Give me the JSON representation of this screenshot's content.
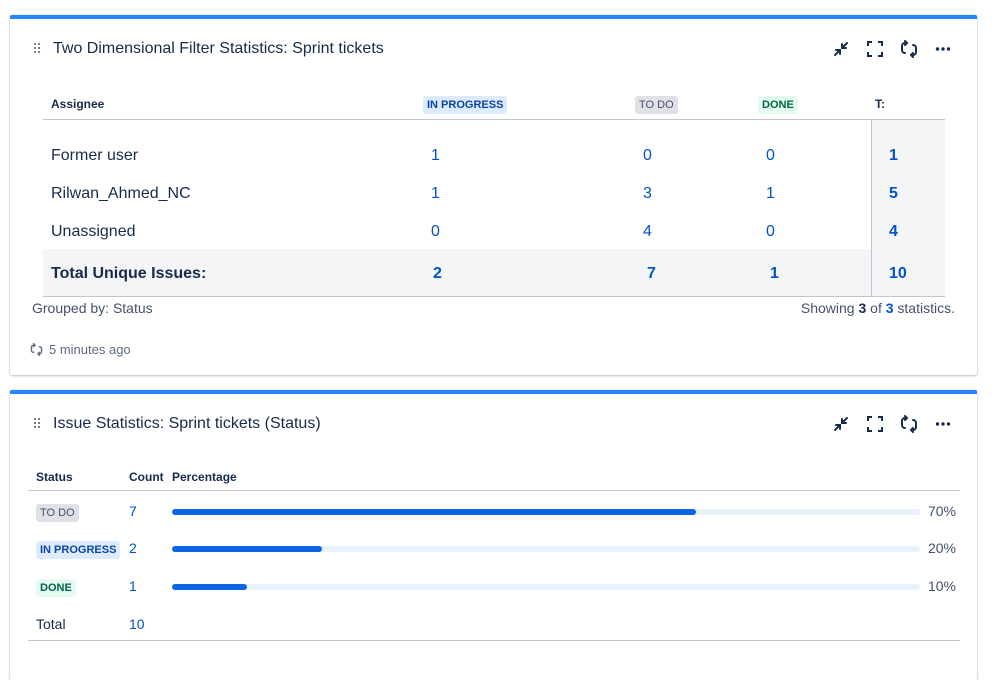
{
  "gadget1": {
    "title": "Two Dimensional Filter Statistics: Sprint tickets",
    "columns": {
      "assignee": "Assignee",
      "in_progress": "IN PROGRESS",
      "to_do": "TO DO",
      "done": "DONE",
      "total": "T:"
    },
    "rows": [
      {
        "name": "Former user",
        "in_progress": "1",
        "to_do": "0",
        "done": "0",
        "total": "1"
      },
      {
        "name": "Rilwan_Ahmed_NC",
        "in_progress": "1",
        "to_do": "3",
        "done": "1",
        "total": "5"
      },
      {
        "name": "Unassigned",
        "in_progress": "0",
        "to_do": "4",
        "done": "0",
        "total": "4"
      }
    ],
    "totals": {
      "label": "Total Unique Issues:",
      "in_progress": "2",
      "to_do": "7",
      "done": "1",
      "total": "10"
    },
    "grouped_by": "Grouped by: Status",
    "showing": {
      "prefix": "Showing",
      "shown": "3",
      "of": "of",
      "count": "3",
      "suffix": "statistics."
    },
    "refreshed": "5 minutes ago"
  },
  "gadget2": {
    "title": "Issue Statistics: Sprint tickets (Status)",
    "columns": {
      "status": "Status",
      "count": "Count",
      "percentage": "Percentage"
    },
    "rows": [
      {
        "status": "TO DO",
        "count": "7",
        "percent_label": "70%",
        "percent": 70,
        "style": "grey"
      },
      {
        "status": "IN PROGRESS",
        "count": "2",
        "percent_label": "20%",
        "percent": 20,
        "style": "blue"
      },
      {
        "status": "DONE",
        "count": "1",
        "percent_label": "10%",
        "percent": 10,
        "style": "green"
      }
    ],
    "total": {
      "label": "Total",
      "count": "10"
    }
  },
  "icons": {
    "drag": "drag-handle-icon",
    "minimize": "minimize-icon",
    "fullscreen": "fullscreen-icon",
    "refresh": "refresh-icon",
    "more": "more-icon"
  },
  "colors": {
    "accent": "#2684ff",
    "link": "#0052cc",
    "bar": "#0c66e4",
    "bar_track": "#e9f2fe"
  }
}
